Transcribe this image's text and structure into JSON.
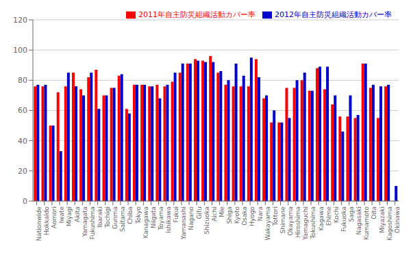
{
  "chart_data": {
    "type": "bar",
    "categories": [
      "Nationwide",
      "Hokkaido",
      "Aomori",
      "Iwate",
      "Miyagi",
      "Akita",
      "Yamagata",
      "Fukushima",
      "Ibaraki",
      "Tochigi",
      "Gunma",
      "Saitama",
      "Chiba",
      "Tokyo",
      "Kanagawa",
      "Niigata",
      "Toyama",
      "Ishikawa",
      "Fukui",
      "Yamanashi",
      "Nagano",
      "Gifu",
      "Shizuoka",
      "Aichi",
      "Mie",
      "Shiga",
      "Kyoto",
      "Osaka",
      "Hyogo",
      "Nara",
      "Wakayama",
      "Tottori",
      "Shimane",
      "Okayama",
      "Hiroshima",
      "Yamaguchi",
      "Tokushima",
      "Kagawa",
      "Ehime",
      "Kochi",
      "Fukuoka",
      "Saga",
      "Nagasaki",
      "Kumamoto",
      "Oita",
      "Miyazaki",
      "Kagoshima",
      "Okinawa"
    ],
    "series": [
      {
        "name": "2011年自主防災組織活動カバー率",
        "color": "#ff0000",
        "values": [
          76,
          76,
          50,
          72,
          76,
          85,
          74,
          82,
          87,
          70,
          75,
          83,
          61,
          77,
          77,
          76,
          77,
          76,
          79,
          85,
          91,
          94,
          93,
          96,
          85,
          77,
          76,
          76,
          76,
          94,
          68,
          52,
          52,
          75,
          75,
          80,
          73,
          88,
          74,
          64,
          56,
          56,
          55,
          91,
          75,
          55,
          76,
          0
        ]
      },
      {
        "name": "2012年自主防災組織活動カバー率",
        "color": "#0000cc",
        "values": [
          77,
          77,
          50,
          33,
          85,
          76,
          70,
          85,
          61,
          70,
          75,
          84,
          58,
          77,
          77,
          76,
          68,
          77,
          85,
          91,
          91,
          93,
          92,
          92,
          86,
          80,
          91,
          83,
          95,
          82,
          70,
          60,
          52,
          55,
          80,
          85,
          73,
          89,
          89,
          70,
          46,
          70,
          57,
          91,
          77,
          76,
          77,
          10
        ]
      }
    ],
    "ylim": [
      0,
      120
    ],
    "yticks": [
      0,
      20,
      40,
      60,
      80,
      100,
      120
    ],
    "grid": true,
    "legend": "upper right"
  }
}
